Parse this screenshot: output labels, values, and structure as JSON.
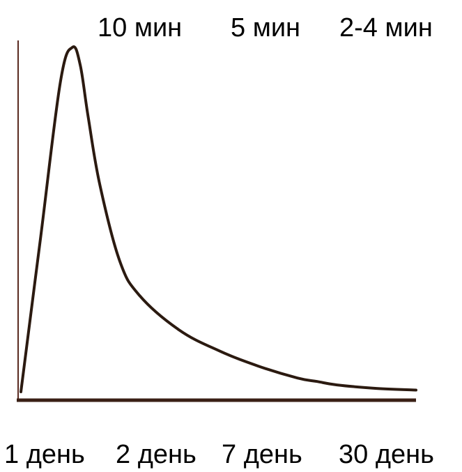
{
  "chart_data": {
    "type": "line",
    "top_labels": [
      "10 мин",
      "5 мин",
      "2-4 мин"
    ],
    "bottom_labels": [
      "1 день",
      "2 день",
      "7 день",
      "30 день"
    ],
    "series": [
      {
        "x": [
          0,
          0.05,
          0.1,
          0.13,
          0.15,
          0.17,
          0.2,
          0.25,
          0.3,
          0.4,
          0.5,
          0.6,
          0.7,
          0.75,
          0.8,
          0.9,
          1.0
        ],
        "y": [
          0,
          0.45,
          0.9,
          1.0,
          0.95,
          0.8,
          0.6,
          0.38,
          0.28,
          0.18,
          0.12,
          0.075,
          0.04,
          0.03,
          0.02,
          0.01,
          0.005
        ]
      }
    ],
    "xlim": [
      0,
      1
    ],
    "ylim": [
      0,
      1
    ],
    "grid": false,
    "colors": {
      "curve": "#2b1a10",
      "axis_y": "#5a2a20",
      "axis_x": "#3a1f15"
    }
  }
}
